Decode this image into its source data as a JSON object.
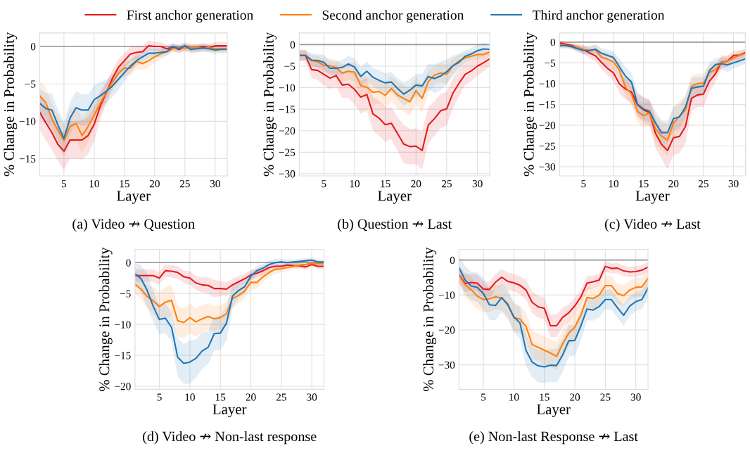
{
  "chart_data": [
    {
      "type": "line",
      "title": "(a) Video ↛ Question",
      "xlabel": "Layer",
      "ylabel": "% Change in Probability",
      "grid": true,
      "legend": "top",
      "line_style": "solid",
      "x": [
        1,
        2,
        3,
        4,
        5,
        6,
        7,
        8,
        9,
        10,
        11,
        12,
        13,
        14,
        15,
        16,
        17,
        18,
        19,
        20,
        21,
        22,
        23,
        24,
        25,
        26,
        27,
        28,
        29,
        30,
        31,
        32
      ],
      "xlim": [
        1,
        32
      ],
      "xticks": [
        5,
        10,
        15,
        20,
        25,
        30
      ],
      "ylim": [
        -17.3,
        1.8
      ],
      "yticks": [
        0,
        {
          "value": -5,
          "label": "−5"
        },
        {
          "value": -10,
          "label": "−10"
        },
        {
          "value": -15,
          "label": "−15"
        }
      ],
      "ref_lines": [
        {
          "axis": "y",
          "value": 0,
          "color": "#999999"
        }
      ],
      "series": [
        {
          "name": "First anchor generation",
          "color": "#e31a1c",
          "values": [
            -8.8,
            -10.2,
            -11.5,
            -13.1,
            -14.0,
            -12.5,
            -12.5,
            -12.5,
            -11.9,
            -10.4,
            -8.0,
            -6.2,
            -4.3,
            -2.8,
            -1.9,
            -1.0,
            -0.8,
            -0.7,
            0.1,
            0.0,
            0.0,
            -0.3,
            -0.1,
            -0.4,
            -0.1,
            -0.2,
            -0.2,
            0.0,
            -0.2,
            0.1,
            0.1,
            0.1
          ],
          "lower": [
            -11.2,
            -12.5,
            -13.8,
            -15.3,
            -16.5,
            -15.0,
            -15.0,
            -15.1,
            -14.4,
            -12.6,
            -9.8,
            -7.6,
            -5.5,
            -3.9,
            -2.9,
            -2.0,
            -1.7,
            -1.5,
            -0.6,
            -0.6,
            -0.6,
            -0.8,
            -0.6,
            -0.9,
            -0.6,
            -0.7,
            -0.7,
            -0.5,
            -0.7,
            -0.4,
            -0.4,
            -0.4
          ],
          "upper": [
            -6.4,
            -7.9,
            -9.2,
            -10.9,
            -11.5,
            -10.0,
            -10.0,
            -9.9,
            -9.4,
            -8.2,
            -6.2,
            -4.8,
            -3.1,
            -1.7,
            -0.9,
            0.0,
            0.1,
            0.1,
            0.8,
            0.6,
            0.6,
            0.2,
            0.4,
            0.1,
            0.4,
            0.3,
            0.3,
            0.5,
            0.3,
            0.6,
            0.6,
            0.6
          ]
        },
        {
          "name": "Second anchor generation",
          "color": "#ff7f0e",
          "values": [
            -6.6,
            -7.5,
            -9.7,
            -11.2,
            -12.6,
            -10.7,
            -10.3,
            -11.9,
            -10.7,
            -9.2,
            -7.6,
            -6.1,
            -4.8,
            -3.6,
            -2.9,
            -2.9,
            -2.0,
            -2.3,
            -1.9,
            -1.4,
            -1.0,
            -0.7,
            -0.3,
            -0.2,
            -0.2,
            -0.2,
            -0.2,
            -0.2,
            -0.2,
            -0.3,
            -0.3,
            -0.3
          ],
          "lower": [
            -8.6,
            -9.5,
            -11.7,
            -13.2,
            -14.8,
            -13.0,
            -12.6,
            -14.2,
            -12.8,
            -11.0,
            -9.2,
            -7.4,
            -6.0,
            -4.7,
            -3.9,
            -3.9,
            -3.0,
            -3.2,
            -2.8,
            -2.2,
            -1.7,
            -1.3,
            -0.8,
            -0.7,
            -0.7,
            -0.7,
            -0.7,
            -0.7,
            -0.7,
            -0.8,
            -0.8,
            -0.8
          ],
          "upper": [
            -4.6,
            -5.5,
            -7.7,
            -9.2,
            -10.4,
            -8.4,
            -8.0,
            -9.6,
            -8.6,
            -7.4,
            -6.0,
            -4.8,
            -3.6,
            -2.5,
            -1.9,
            -1.9,
            -1.0,
            -1.4,
            -1.0,
            -0.6,
            -0.3,
            -0.1,
            0.2,
            0.3,
            0.3,
            0.3,
            0.3,
            0.3,
            0.3,
            0.2,
            0.2,
            0.2
          ]
        },
        {
          "name": "Third anchor generation",
          "color": "#1f77b4",
          "values": [
            -7.6,
            -8.3,
            -8.5,
            -10.5,
            -12.3,
            -9.6,
            -8.2,
            -8.5,
            -8.5,
            -7.1,
            -6.6,
            -6.0,
            -5.3,
            -4.4,
            -3.5,
            -2.6,
            -1.9,
            -1.4,
            -0.9,
            -0.9,
            -0.8,
            -0.7,
            0.0,
            -0.3,
            0.1,
            -0.4,
            -0.3,
            -0.2,
            -0.3,
            -0.5,
            -0.4,
            -0.4
          ],
          "lower": [
            -9.6,
            -10.3,
            -10.8,
            -12.6,
            -14.4,
            -11.8,
            -10.4,
            -10.6,
            -10.6,
            -9.0,
            -8.4,
            -7.6,
            -6.8,
            -5.8,
            -4.6,
            -3.5,
            -2.6,
            -2.1,
            -1.6,
            -1.5,
            -1.4,
            -1.2,
            -0.5,
            -0.8,
            -0.4,
            -0.9,
            -0.8,
            -0.7,
            -0.8,
            -1.0,
            -0.9,
            -0.9
          ],
          "upper": [
            -5.6,
            -6.3,
            -6.2,
            -8.4,
            -10.2,
            -7.4,
            -6.0,
            -6.4,
            -6.4,
            -5.2,
            -4.8,
            -4.4,
            -3.8,
            -3.0,
            -2.4,
            -1.7,
            -1.2,
            -0.7,
            -0.2,
            -0.3,
            -0.2,
            -0.2,
            0.5,
            0.2,
            0.6,
            0.1,
            0.2,
            0.3,
            0.2,
            0.0,
            0.1,
            0.1
          ]
        }
      ]
    },
    {
      "type": "line",
      "title": "(b) Question ↛ Last",
      "xlabel": "Layer",
      "ylabel": "% Change in Probability",
      "grid": true,
      "line_style": "solid",
      "x": [
        1,
        2,
        3,
        4,
        5,
        6,
        7,
        8,
        9,
        10,
        11,
        12,
        13,
        14,
        15,
        16,
        17,
        18,
        19,
        20,
        21,
        22,
        23,
        24,
        25,
        26,
        27,
        28,
        29,
        30,
        31,
        32
      ],
      "xlim": [
        1,
        32
      ],
      "xticks": [
        5,
        10,
        15,
        20,
        25,
        30
      ],
      "ylim": [
        -30.5,
        2.7
      ],
      "yticks": [
        0,
        {
          "value": -5,
          "label": "−5"
        },
        {
          "value": -10,
          "label": "−10"
        },
        {
          "value": -15,
          "label": "−15"
        },
        {
          "value": -20,
          "label": "−20"
        },
        {
          "value": -25,
          "label": "−25"
        },
        {
          "value": -30,
          "label": "−30"
        }
      ],
      "ref_lines": [
        {
          "axis": "y",
          "value": 0,
          "color": "#999999"
        }
      ],
      "series": [
        {
          "color": "#e31a1c",
          "values": [
            -2.5,
            -2.5,
            -5.8,
            -6.0,
            -6.9,
            -7.8,
            -7.2,
            -9.4,
            -9.2,
            -10.4,
            -12.2,
            -11.6,
            -16.1,
            -17.1,
            -18.6,
            -18.3,
            -20.7,
            -23.1,
            -23.7,
            -23.6,
            -24.6,
            -18.7,
            -17.2,
            -15.4,
            -14.9,
            -11.3,
            -9.0,
            -6.9,
            -6.1,
            -5.0,
            -4.2,
            -3.3
          ],
          "lower": [
            -3.8,
            -3.8,
            -7.8,
            -8.2,
            -9.4,
            -10.4,
            -9.8,
            -12.4,
            -12.4,
            -13.9,
            -16.0,
            -15.4,
            -20.0,
            -21.2,
            -22.6,
            -22.0,
            -24.6,
            -27.6,
            -27.8,
            -27.8,
            -29.0,
            -22.9,
            -21.2,
            -19.4,
            -18.8,
            -14.9,
            -12.0,
            -9.4,
            -8.4,
            -7.2,
            -6.2,
            -5.0
          ],
          "upper": [
            -1.2,
            -1.2,
            -3.8,
            -3.8,
            -4.4,
            -5.2,
            -4.6,
            -6.4,
            -6.0,
            -6.9,
            -8.4,
            -7.8,
            -12.2,
            -13.0,
            -14.6,
            -14.6,
            -16.8,
            -18.6,
            -19.6,
            -19.4,
            -20.2,
            -14.5,
            -13.2,
            -11.4,
            -11.0,
            -7.7,
            -6.0,
            -4.4,
            -3.8,
            -2.8,
            -2.2,
            -1.6
          ]
        },
        {
          "color": "#ff7f0e",
          "values": [
            -2.5,
            -2.5,
            -3.7,
            -4.0,
            -4.8,
            -4.9,
            -5.4,
            -6.6,
            -6.2,
            -6.4,
            -9.5,
            -9.9,
            -11.1,
            -10.9,
            -11.8,
            -10.2,
            -11.7,
            -12.5,
            -13.3,
            -10.7,
            -12.5,
            -8.6,
            -7.1,
            -6.6,
            -6.9,
            -5.0,
            -3.8,
            -3.1,
            -2.7,
            -2.3,
            -2.3,
            -1.7
          ],
          "lower": [
            -3.8,
            -3.8,
            -5.0,
            -5.4,
            -6.4,
            -6.6,
            -7.2,
            -8.6,
            -8.2,
            -8.6,
            -12.2,
            -12.4,
            -14.0,
            -13.8,
            -14.8,
            -13.2,
            -14.8,
            -15.6,
            -16.6,
            -13.6,
            -16.0,
            -11.2,
            -9.2,
            -8.8,
            -9.2,
            -6.8,
            -5.2,
            -4.4,
            -3.8,
            -3.4,
            -3.3,
            -2.6
          ],
          "upper": [
            -1.2,
            -1.2,
            -2.4,
            -2.6,
            -3.2,
            -3.2,
            -3.6,
            -4.6,
            -4.2,
            -4.2,
            -6.8,
            -7.4,
            -8.2,
            -8.0,
            -8.8,
            -7.2,
            -8.6,
            -9.4,
            -10.0,
            -7.8,
            -9.0,
            -6.0,
            -5.0,
            -4.4,
            -4.6,
            -3.2,
            -2.4,
            -1.8,
            -1.6,
            -1.2,
            -1.3,
            -0.8
          ]
        },
        {
          "color": "#1f77b4",
          "values": [
            -2.5,
            -2.5,
            -3.6,
            -3.7,
            -4.1,
            -5.5,
            -5.5,
            -5.3,
            -4.5,
            -5.2,
            -7.4,
            -6.2,
            -7.6,
            -8.3,
            -8.9,
            -8.7,
            -10.2,
            -11.5,
            -10.6,
            -9.4,
            -9.6,
            -7.4,
            -7.9,
            -7.3,
            -6.3,
            -4.9,
            -4.1,
            -2.7,
            -2.2,
            -1.4,
            -1.0,
            -1.1
          ],
          "lower": [
            -3.6,
            -3.6,
            -5.0,
            -5.2,
            -5.8,
            -7.2,
            -7.2,
            -7.0,
            -6.4,
            -7.2,
            -9.6,
            -8.4,
            -9.8,
            -10.6,
            -11.2,
            -11.0,
            -12.6,
            -14.2,
            -13.2,
            -12.0,
            -12.4,
            -10.4,
            -11.2,
            -10.6,
            -9.2,
            -7.2,
            -6.0,
            -4.2,
            -3.6,
            -2.8,
            -2.4,
            -2.2
          ],
          "upper": [
            -1.4,
            -1.4,
            -2.2,
            -2.2,
            -2.4,
            -3.8,
            -3.8,
            -3.6,
            -2.6,
            -3.2,
            -5.2,
            -4.0,
            -5.4,
            -6.0,
            -6.6,
            -6.4,
            -7.8,
            -8.8,
            -8.0,
            -6.8,
            -6.8,
            -4.4,
            -4.6,
            -4.0,
            -3.4,
            -2.6,
            -2.2,
            -1.2,
            -0.8,
            0.0,
            0.4,
            0.0
          ]
        }
      ]
    },
    {
      "type": "line",
      "title": "(c) Video ↛ Last",
      "xlabel": "Layer",
      "ylabel": "% Change in Probability",
      "grid": true,
      "line_style": "solid",
      "x": [
        1,
        2,
        3,
        4,
        5,
        6,
        7,
        8,
        9,
        10,
        11,
        12,
        13,
        14,
        15,
        16,
        17,
        18,
        19,
        20,
        21,
        22,
        23,
        24,
        25,
        26,
        27,
        28,
        29,
        30,
        31,
        32
      ],
      "xlim": [
        1,
        32
      ],
      "xticks": [
        5,
        10,
        15,
        20,
        25,
        30
      ],
      "ylim": [
        -32.2,
        2.2
      ],
      "yticks": [
        0,
        {
          "value": -5,
          "label": "−5"
        },
        {
          "value": -10,
          "label": "−10"
        },
        {
          "value": -15,
          "label": "−15"
        },
        {
          "value": -20,
          "label": "−20"
        },
        {
          "value": -25,
          "label": "−25"
        },
        {
          "value": -30,
          "label": "−30"
        }
      ],
      "ref_lines": [
        {
          "axis": "y",
          "value": 0,
          "color": "#999999"
        }
      ],
      "series": [
        {
          "color": "#e31a1c",
          "values": [
            -0.2,
            -0.5,
            -0.8,
            -1.3,
            -1.8,
            -2.6,
            -3.3,
            -4.9,
            -6.3,
            -7.4,
            -10.1,
            -11.3,
            -12.0,
            -15.1,
            -16.3,
            -17.0,
            -22.0,
            -24.6,
            -26.1,
            -23.0,
            -22.7,
            -20.3,
            -13.5,
            -12.7,
            -12.5,
            -9.4,
            -7.6,
            -4.8,
            -4.6,
            -3.2,
            -3.1,
            -2.5
          ],
          "lower": [
            -0.8,
            -1.0,
            -1.5,
            -2.2,
            -2.8,
            -3.8,
            -4.6,
            -6.4,
            -8.0,
            -9.4,
            -12.4,
            -13.8,
            -14.8,
            -18.0,
            -19.4,
            -20.2,
            -25.4,
            -28.2,
            -30.6,
            -27.2,
            -26.8,
            -24.3,
            -16.6,
            -15.6,
            -15.6,
            -12.0,
            -9.6,
            -6.4,
            -6.0,
            -4.4,
            -4.2,
            -3.4
          ],
          "upper": [
            0.4,
            0.0,
            -0.1,
            -0.4,
            -0.8,
            -1.4,
            -2.0,
            -3.4,
            -4.6,
            -5.4,
            -7.8,
            -8.8,
            -9.2,
            -12.2,
            -13.2,
            -13.8,
            -18.6,
            -21.0,
            -21.6,
            -18.8,
            -18.6,
            -16.3,
            -10.4,
            -9.8,
            -9.4,
            -6.8,
            -5.6,
            -3.2,
            -3.2,
            -2.0,
            -2.0,
            -1.6
          ]
        },
        {
          "color": "#ff7f0e",
          "values": [
            -0.6,
            -0.9,
            -1.0,
            -1.3,
            -1.8,
            -2.0,
            -1.8,
            -3.6,
            -4.1,
            -4.8,
            -6.8,
            -10.9,
            -12.5,
            -16.7,
            -17.7,
            -17.1,
            -20.9,
            -22.6,
            -23.6,
            -19.5,
            -17.8,
            -16.3,
            -10.6,
            -10.0,
            -9.9,
            -7.3,
            -6.6,
            -4.9,
            -4.6,
            -3.8,
            -3.2,
            -2.7
          ],
          "lower": [
            -1.2,
            -1.4,
            -1.6,
            -2.0,
            -2.8,
            -3.0,
            -3.0,
            -5.0,
            -5.8,
            -6.6,
            -8.8,
            -13.2,
            -15.0,
            -19.4,
            -20.6,
            -20.0,
            -24.2,
            -26.0,
            -27.4,
            -23.2,
            -21.4,
            -19.6,
            -13.2,
            -12.4,
            -12.2,
            -9.2,
            -8.2,
            -6.2,
            -5.8,
            -4.8,
            -4.2,
            -3.6
          ],
          "upper": [
            0.0,
            -0.4,
            -0.4,
            -0.6,
            -0.8,
            -1.0,
            -0.6,
            -2.2,
            -2.4,
            -3.0,
            -4.8,
            -8.6,
            -10.0,
            -14.0,
            -14.8,
            -14.2,
            -17.6,
            -19.2,
            -19.8,
            -15.8,
            -14.2,
            -13.0,
            -8.0,
            -7.6,
            -7.6,
            -5.4,
            -5.0,
            -3.6,
            -3.4,
            -2.8,
            -2.2,
            -1.8
          ]
        },
        {
          "color": "#1f77b4",
          "values": [
            -0.9,
            -0.8,
            -1.1,
            -1.6,
            -2.0,
            -2.0,
            -1.7,
            -2.7,
            -3.2,
            -3.7,
            -6.0,
            -8.2,
            -9.6,
            -15.0,
            -16.1,
            -16.6,
            -19.5,
            -21.8,
            -21.8,
            -18.4,
            -18.0,
            -15.6,
            -11.1,
            -10.8,
            -10.6,
            -6.8,
            -5.4,
            -5.2,
            -5.5,
            -5.0,
            -4.5,
            -4.0
          ],
          "lower": [
            -1.6,
            -1.4,
            -1.8,
            -2.4,
            -3.0,
            -3.0,
            -2.8,
            -4.0,
            -4.6,
            -5.2,
            -8.0,
            -10.4,
            -11.8,
            -17.6,
            -18.8,
            -19.2,
            -22.4,
            -24.8,
            -24.6,
            -21.4,
            -20.8,
            -18.4,
            -13.6,
            -13.2,
            -12.8,
            -8.8,
            -7.0,
            -6.6,
            -7.2,
            -6.4,
            -5.8,
            -5.2
          ],
          "upper": [
            -0.2,
            -0.2,
            -0.4,
            -0.8,
            -1.0,
            -1.0,
            -0.6,
            -1.4,
            -1.8,
            -2.2,
            -4.0,
            -6.0,
            -7.4,
            -12.4,
            -13.4,
            -14.0,
            -16.6,
            -18.8,
            -19.0,
            -15.4,
            -15.2,
            -12.8,
            -8.6,
            -8.4,
            -8.4,
            -4.8,
            -3.8,
            -3.8,
            -3.8,
            -3.6,
            -3.2,
            -2.8
          ]
        }
      ]
    },
    {
      "type": "line",
      "title": "(d) Video ↛ Non-last response",
      "xlabel": "Layer",
      "ylabel": "% Change in Probability",
      "grid": true,
      "line_style": "solid",
      "x": [
        1,
        2,
        3,
        4,
        5,
        6,
        7,
        8,
        9,
        10,
        11,
        12,
        13,
        14,
        15,
        16,
        17,
        18,
        19,
        20,
        21,
        22,
        23,
        24,
        25,
        26,
        27,
        28,
        29,
        30,
        31,
        32
      ],
      "xlim": [
        1,
        32
      ],
      "xticks": [
        5,
        10,
        15,
        20,
        25,
        30
      ],
      "ylim": [
        -20.5,
        2.1
      ],
      "yticks": [
        0,
        {
          "value": -5,
          "label": "−5"
        },
        {
          "value": -10,
          "label": "−10"
        },
        {
          "value": -15,
          "label": "−15"
        },
        {
          "value": -20,
          "label": "−20"
        }
      ],
      "ref_lines": [
        {
          "axis": "y",
          "value": 0,
          "color": "#999999"
        }
      ],
      "series": [
        {
          "color": "#e31a1c",
          "values": [
            -2.1,
            -2.1,
            -2.1,
            -2.1,
            -2.5,
            -1.3,
            -1.4,
            -1.6,
            -2.3,
            -2.5,
            -3.3,
            -3.6,
            -3.7,
            -4.2,
            -4.2,
            -4.3,
            -3.6,
            -3.1,
            -2.6,
            -2.0,
            -1.7,
            -1.3,
            -0.8,
            -0.6,
            -0.6,
            -0.4,
            -0.5,
            -0.5,
            -0.7,
            -0.3,
            -0.6,
            -0.6
          ],
          "lower": [
            -3.1,
            -3.1,
            -3.1,
            -3.1,
            -3.5,
            -2.3,
            -2.4,
            -2.6,
            -3.3,
            -3.6,
            -4.4,
            -4.8,
            -5.0,
            -5.6,
            -5.4,
            -5.4,
            -4.6,
            -4.0,
            -3.4,
            -2.8,
            -2.4,
            -2.0,
            -1.4,
            -1.1,
            -1.0,
            -0.8,
            -0.9,
            -0.9,
            -1.1,
            -0.7,
            -1.0,
            -1.0
          ],
          "upper": [
            -1.1,
            -1.1,
            -1.1,
            -1.1,
            -1.5,
            -0.3,
            -0.4,
            -0.6,
            -1.3,
            -1.4,
            -2.2,
            -2.4,
            -2.4,
            -2.8,
            -3.0,
            -3.2,
            -2.6,
            -2.2,
            -1.8,
            -1.2,
            -1.0,
            -0.6,
            -0.2,
            -0.1,
            -0.2,
            0.0,
            -0.1,
            -0.1,
            -0.3,
            0.1,
            -0.2,
            -0.2
          ]
        },
        {
          "color": "#ff7f0e",
          "values": [
            -3.5,
            -4.3,
            -5.5,
            -6.2,
            -7.1,
            -6.4,
            -6.1,
            -9.4,
            -9.7,
            -8.9,
            -9.6,
            -9.1,
            -8.7,
            -9.1,
            -8.9,
            -8.3,
            -5.8,
            -5.3,
            -4.6,
            -3.2,
            -3.2,
            -2.3,
            -1.6,
            -1.1,
            -1.0,
            -0.8,
            -0.6,
            -0.4,
            -0.3,
            -0.1,
            -0.2,
            -0.2
          ],
          "lower": [
            -5.0,
            -6.0,
            -7.4,
            -8.4,
            -9.6,
            -9.0,
            -8.8,
            -12.0,
            -12.2,
            -11.4,
            -12.0,
            -11.4,
            -10.8,
            -11.2,
            -10.9,
            -10.2,
            -7.4,
            -6.6,
            -5.8,
            -4.4,
            -4.2,
            -3.2,
            -2.4,
            -1.8,
            -1.6,
            -1.4,
            -1.1,
            -0.9,
            -0.8,
            -0.5,
            -0.6,
            -0.6
          ],
          "upper": [
            -2.0,
            -2.6,
            -3.6,
            -4.0,
            -4.8,
            -4.0,
            -3.6,
            -7.0,
            -7.4,
            -6.6,
            -7.4,
            -6.8,
            -6.6,
            -7.0,
            -6.9,
            -6.4,
            -4.4,
            -4.0,
            -3.4,
            -2.0,
            -2.2,
            -1.4,
            -0.8,
            -0.4,
            -0.4,
            -0.2,
            -0.1,
            0.1,
            0.2,
            0.3,
            0.2,
            0.2
          ]
        },
        {
          "color": "#1f77b4",
          "values": [
            -1.8,
            -2.6,
            -4.5,
            -7.1,
            -9.2,
            -9.0,
            -10.5,
            -15.3,
            -16.3,
            -16.1,
            -15.5,
            -14.3,
            -13.7,
            -11.5,
            -11.4,
            -9.8,
            -5.4,
            -4.5,
            -3.9,
            -2.2,
            -1.3,
            -0.9,
            -0.3,
            0.0,
            0.1,
            0.0,
            0.1,
            0.2,
            0.3,
            0.4,
            0.1,
            0.1
          ],
          "lower": [
            -3.6,
            -4.8,
            -7.2,
            -9.6,
            -11.6,
            -11.4,
            -12.8,
            -18.4,
            -19.6,
            -19.6,
            -18.6,
            -17.2,
            -16.4,
            -14.2,
            -14.2,
            -12.6,
            -7.2,
            -5.8,
            -5.0,
            -3.0,
            -2.0,
            -1.6,
            -0.9,
            -0.6,
            -0.4,
            -0.5,
            -0.3,
            -0.2,
            -0.1,
            0.0,
            -0.3,
            -0.3
          ],
          "upper": [
            0.0,
            -0.4,
            -1.8,
            -4.6,
            -6.8,
            -6.6,
            -8.2,
            -12.2,
            -13.2,
            -12.6,
            -12.4,
            -11.4,
            -11.0,
            -8.8,
            -8.6,
            -7.0,
            -3.6,
            -3.2,
            -2.8,
            -1.4,
            -0.6,
            -0.2,
            0.3,
            0.6,
            0.6,
            0.5,
            0.5,
            0.6,
            0.7,
            0.8,
            0.5,
            0.5
          ]
        }
      ]
    },
    {
      "type": "line",
      "title": "(e) Non-last Response ↛ Last",
      "xlabel": "Layer",
      "ylabel": "% Change in Probability",
      "grid": true,
      "line_style": "solid",
      "x": [
        1,
        2,
        3,
        4,
        5,
        6,
        7,
        8,
        9,
        10,
        11,
        12,
        13,
        14,
        15,
        16,
        17,
        18,
        19,
        20,
        21,
        22,
        23,
        24,
        25,
        26,
        27,
        28,
        29,
        30,
        31,
        32
      ],
      "xlim": [
        1,
        32
      ],
      "xticks": [
        5,
        10,
        15,
        20,
        25,
        30
      ],
      "ylim": [
        -37.0,
        3.0
      ],
      "yticks": [
        0,
        {
          "value": -10,
          "label": "−10"
        },
        {
          "value": -20,
          "label": "−20"
        },
        {
          "value": -30,
          "label": "−30"
        }
      ],
      "ref_lines": [
        {
          "axis": "y",
          "value": 0,
          "color": "#999999"
        }
      ],
      "series": [
        {
          "color": "#e31a1c",
          "values": [
            -4.2,
            -6.7,
            -6.4,
            -6.6,
            -8.3,
            -8.4,
            -6.3,
            -4.9,
            -6.1,
            -6.5,
            -7.2,
            -8.6,
            -12.1,
            -13.4,
            -13.8,
            -18.8,
            -18.8,
            -16.4,
            -15.1,
            -13.1,
            -10.5,
            -6.6,
            -6.2,
            -5.7,
            -1.8,
            -2.4,
            -2.3,
            -3.1,
            -3.4,
            -3.3,
            -2.9,
            -2.0
          ],
          "lower": [
            -6.6,
            -9.2,
            -8.8,
            -9.0,
            -10.6,
            -10.8,
            -8.6,
            -7.2,
            -8.6,
            -9.0,
            -9.8,
            -11.4,
            -15.2,
            -16.6,
            -17.0,
            -22.0,
            -22.0,
            -19.2,
            -17.6,
            -15.4,
            -12.6,
            -8.6,
            -8.0,
            -7.4,
            -3.4,
            -3.8,
            -3.8,
            -4.6,
            -4.8,
            -4.8,
            -4.4,
            -3.4
          ],
          "upper": [
            -1.8,
            -4.2,
            -4.0,
            -4.2,
            -6.0,
            -6.0,
            -4.0,
            -2.6,
            -3.6,
            -4.0,
            -4.6,
            -5.8,
            -9.0,
            -10.2,
            -10.6,
            -15.6,
            -15.6,
            -13.6,
            -12.6,
            -10.8,
            -8.4,
            -4.6,
            -4.4,
            -4.0,
            -0.2,
            -1.0,
            -0.8,
            -1.6,
            -2.0,
            -1.8,
            -1.4,
            -0.6
          ]
        },
        {
          "color": "#ff7f0e",
          "values": [
            -4.4,
            -7.1,
            -8.5,
            -10.3,
            -11.3,
            -11.1,
            -10.5,
            -10.9,
            -12.5,
            -16.5,
            -16.9,
            -19.0,
            -24.2,
            -25.0,
            -25.8,
            -26.6,
            -27.6,
            -24.0,
            -20.9,
            -19.2,
            -15.7,
            -10.7,
            -11.0,
            -10.0,
            -7.3,
            -7.3,
            -9.6,
            -10.2,
            -8.6,
            -7.8,
            -7.7,
            -5.2
          ],
          "lower": [
            -7.6,
            -10.6,
            -12.2,
            -14.0,
            -15.0,
            -14.8,
            -14.0,
            -14.4,
            -16.2,
            -20.4,
            -20.8,
            -23.0,
            -28.2,
            -29.0,
            -29.8,
            -30.6,
            -31.6,
            -28.0,
            -24.6,
            -22.8,
            -19.0,
            -13.8,
            -14.0,
            -13.0,
            -10.2,
            -10.2,
            -12.4,
            -13.2,
            -11.4,
            -10.6,
            -10.4,
            -7.8
          ],
          "upper": [
            -1.2,
            -3.6,
            -4.8,
            -6.6,
            -7.6,
            -7.4,
            -7.0,
            -7.4,
            -8.8,
            -12.6,
            -13.0,
            -15.0,
            -20.2,
            -21.0,
            -21.8,
            -22.6,
            -23.6,
            -20.0,
            -17.2,
            -15.6,
            -12.4,
            -7.6,
            -8.0,
            -7.0,
            -4.4,
            -4.4,
            -6.8,
            -7.2,
            -5.8,
            -5.0,
            -5.0,
            -2.6
          ]
        },
        {
          "color": "#1f77b4",
          "values": [
            -2.2,
            -5.7,
            -7.4,
            -7.8,
            -9.6,
            -12.8,
            -13.0,
            -10.7,
            -12.8,
            -16.3,
            -18.0,
            -25.9,
            -29.2,
            -30.3,
            -30.6,
            -30.1,
            -30.2,
            -27.2,
            -23.1,
            -23.0,
            -18.8,
            -14.0,
            -14.3,
            -13.3,
            -11.3,
            -11.3,
            -13.7,
            -15.8,
            -13.2,
            -11.9,
            -11.3,
            -8.0
          ],
          "lower": [
            -6.0,
            -9.6,
            -11.4,
            -12.0,
            -14.0,
            -17.2,
            -17.2,
            -14.8,
            -17.0,
            -20.6,
            -22.6,
            -30.4,
            -33.6,
            -35.0,
            -35.2,
            -34.8,
            -35.0,
            -32.0,
            -27.6,
            -27.4,
            -23.0,
            -17.2,
            -17.4,
            -16.4,
            -14.2,
            -14.2,
            -16.6,
            -18.8,
            -16.0,
            -14.6,
            -14.0,
            -10.8
          ],
          "upper": [
            1.4,
            -1.8,
            -3.4,
            -3.6,
            -5.2,
            -8.4,
            -8.8,
            -6.6,
            -8.6,
            -12.0,
            -13.4,
            -21.4,
            -24.8,
            -25.6,
            -26.0,
            -25.4,
            -25.4,
            -22.4,
            -18.6,
            -18.6,
            -14.6,
            -10.8,
            -11.2,
            -10.2,
            -8.4,
            -8.4,
            -10.8,
            -12.8,
            -10.4,
            -9.2,
            -8.6,
            -5.2
          ]
        }
      ]
    }
  ]
}
